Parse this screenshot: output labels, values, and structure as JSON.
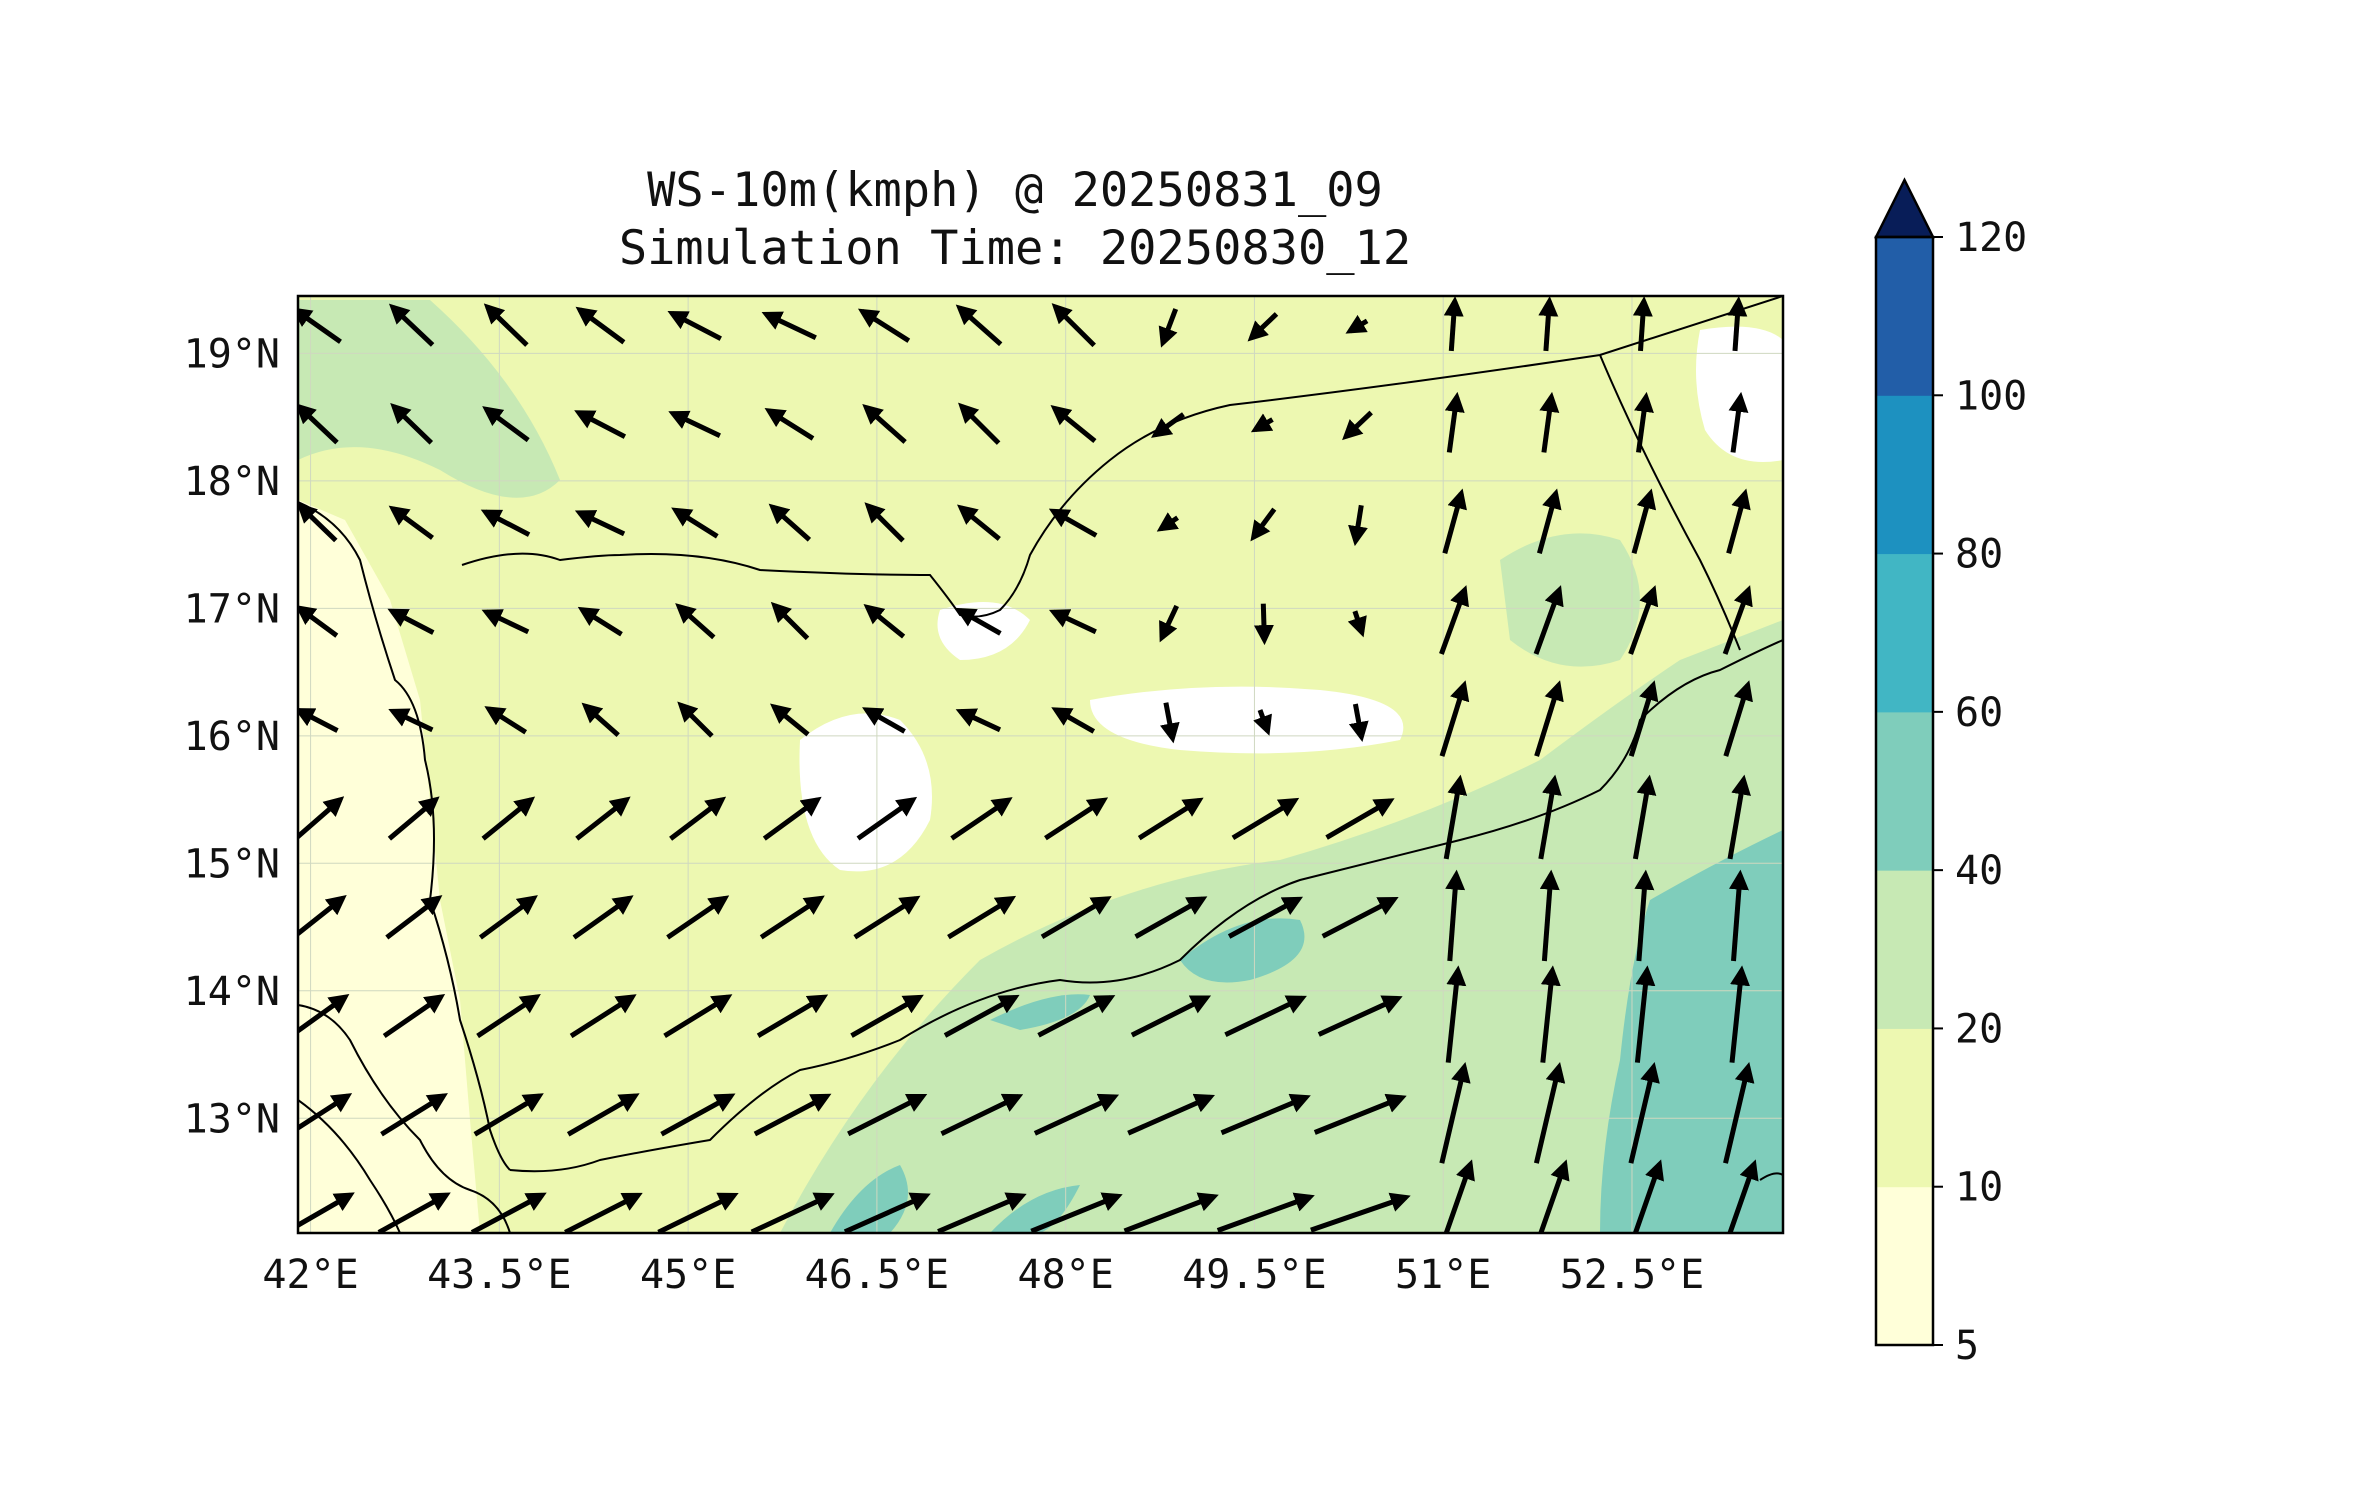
{
  "figure": {
    "title_line1": "WS-10m(kmph) @ 20250831_09",
    "title_line2": "Simulation Time: 20250830_12"
  },
  "axes": {
    "x_ticks": [
      "42°E",
      "43.5°E",
      "45°E",
      "46.5°E",
      "48°E",
      "49.5°E",
      "51°E",
      "52.5°E"
    ],
    "y_ticks": [
      "19°N",
      "18°N",
      "17°N",
      "16°N",
      "15°N",
      "14°N",
      "13°N"
    ],
    "lon_range": [
      41.9,
      53.7
    ],
    "lat_range": [
      12.1,
      19.45
    ],
    "grid": true
  },
  "colorbar": {
    "labels": [
      "5",
      "10",
      "20",
      "40",
      "60",
      "80",
      "100",
      "120"
    ],
    "levels": [
      5,
      10,
      20,
      40,
      60,
      80,
      100,
      120
    ],
    "colors": [
      "#ffffd9",
      "#edf8b1",
      "#c7e9b4",
      "#7fcdbb",
      "#41b6c4",
      "#1d91c0",
      "#225ea8",
      "#253494"
    ],
    "extend_color": "#081d58",
    "extend": "max"
  },
  "map_style": {
    "background_fill": "#edf8b1",
    "coastline_color": "#000000",
    "border_color": "#000000"
  }
}
